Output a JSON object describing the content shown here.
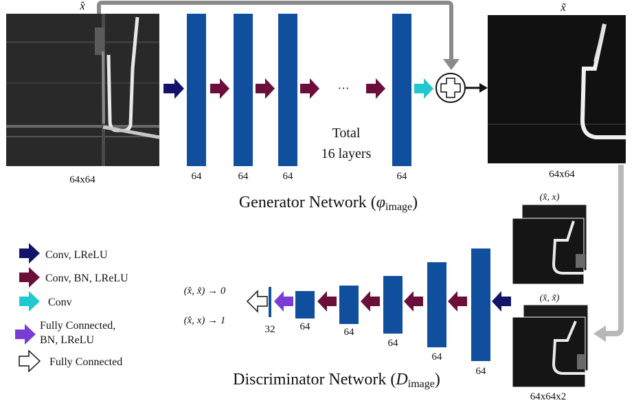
{
  "generator": {
    "title_prefix": "Generator Network (",
    "title_symbol": "φ",
    "title_subscript": "image",
    "title_suffix": ")",
    "input_symbol": "x̂",
    "output_symbol": "x̃",
    "input_size": "64x64",
    "output_size": "64x64",
    "layer_labels": [
      "64",
      "64",
      "64",
      "64"
    ],
    "ellipsis": "···",
    "total_line1": "Total",
    "total_line2": "16 layers"
  },
  "discriminator": {
    "title_prefix": "Discriminator Network (",
    "title_symbol": "D",
    "title_subscript": "image",
    "title_suffix": ")",
    "layer_labels": [
      "64",
      "64",
      "64",
      "64",
      "64",
      "64",
      "32"
    ],
    "pair_real": "(x̂, x)",
    "pair_fake": "(x̂, x̃)",
    "pair_size": "64x64x2",
    "output_fake": "(x̂, x̃) → 0",
    "output_real": "(x̂, x) → 1"
  },
  "legend": {
    "items": [
      {
        "label": "Conv, LReLU",
        "color": "#13136b"
      },
      {
        "label": "Conv, BN, LReLU",
        "color": "#6b0f3a"
      },
      {
        "label": "Conv",
        "color": "#22c8d0"
      },
      {
        "label_line1": "Fully Connected,",
        "label_line2": "BN, LReLU",
        "color": "#7a3bd6"
      },
      {
        "label": "Fully Connected",
        "color": "#ffffff"
      }
    ]
  },
  "colors": {
    "layer": "#0f4f9e",
    "skip": "#8a8a8a",
    "skip_light": "#b8b8b8"
  }
}
